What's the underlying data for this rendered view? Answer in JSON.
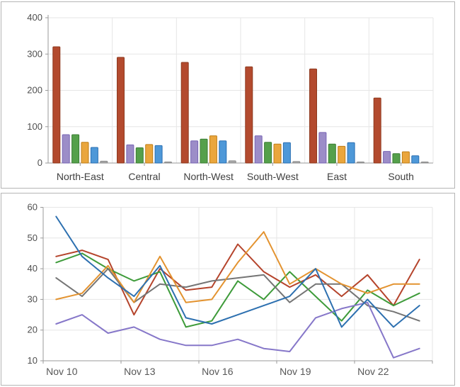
{
  "colors": {
    "background": "#ffffff",
    "panel_border": "#b5b5b5",
    "axis_line": "#9a9a9a",
    "grid_line": "#e6e6e6",
    "tick_text": "#4f4f4f",
    "category_text": "#3f3f3f",
    "date_text": "#575757"
  },
  "chart_data": [
    {
      "type": "bar",
      "title": "",
      "legend": "none",
      "grid": true,
      "categories": [
        "North-East",
        "Central",
        "North-West",
        "South-West",
        "East",
        "South"
      ],
      "ylim": [
        0,
        400
      ],
      "yticks": [
        0,
        100,
        200,
        300,
        400
      ],
      "series": [
        {
          "name": "red-series",
          "fill": "#b34a2e",
          "stroke": "#8e3a1f",
          "values": [
            320,
            291,
            277,
            265,
            259,
            179
          ]
        },
        {
          "name": "purple-series",
          "fill": "#9c8dc8",
          "stroke": "#7765b4",
          "values": [
            78,
            50,
            61,
            75,
            84,
            32
          ]
        },
        {
          "name": "green-series",
          "fill": "#55a04b",
          "stroke": "#3a7d33",
          "values": [
            78,
            42,
            66,
            57,
            52,
            26
          ]
        },
        {
          "name": "orange-series",
          "fill": "#eaa63d",
          "stroke": "#bf7e17",
          "values": [
            57,
            51,
            75,
            52,
            46,
            31
          ]
        },
        {
          "name": "blue-series",
          "fill": "#4e98d8",
          "stroke": "#2a6fb2",
          "values": [
            43,
            48,
            61,
            56,
            56,
            20
          ]
        },
        {
          "name": "gray-series",
          "fill": "#a9a9a9",
          "stroke": "#8a8a8a",
          "values": [
            5,
            3,
            6,
            4,
            3,
            3
          ]
        }
      ]
    },
    {
      "type": "line",
      "title": "",
      "legend": "none",
      "grid": true,
      "num_points": 15,
      "points_per_tick": 3,
      "x_tick_labels": [
        "Nov 10",
        "Nov 13",
        "Nov 16",
        "Nov 19",
        "Nov 22"
      ],
      "ylim": [
        10,
        60
      ],
      "yticks": [
        10,
        20,
        30,
        40,
        50,
        60
      ],
      "series": [
        {
          "name": "red-series",
          "color": "#b5442c",
          "values": [
            44,
            46,
            43,
            25,
            40,
            33,
            34,
            48,
            39,
            34,
            38,
            31,
            38,
            28,
            43
          ]
        },
        {
          "name": "green-series",
          "color": "#3e9b3a",
          "values": [
            42,
            45,
            40,
            36,
            39,
            21,
            23,
            36,
            30,
            39,
            31,
            23,
            33,
            28,
            32
          ]
        },
        {
          "name": "gray-series",
          "color": "#757575",
          "values": [
            37,
            31,
            40,
            29,
            35,
            34,
            36,
            37,
            38,
            29,
            35,
            35,
            28,
            26,
            23
          ]
        },
        {
          "name": "orange-series",
          "color": "#e39330",
          "values": [
            30,
            32,
            41,
            29,
            44,
            29,
            30,
            42,
            52,
            35,
            40,
            35,
            32,
            35,
            35
          ]
        },
        {
          "name": "purple-series",
          "color": "#8677c9",
          "values": [
            22,
            25,
            19,
            21,
            17,
            15,
            15,
            17,
            14,
            13,
            24,
            27,
            29,
            11,
            14
          ]
        },
        {
          "name": "blue-series",
          "color": "#2d70b0",
          "values": [
            57,
            44,
            37,
            31,
            41,
            24,
            22,
            25,
            28,
            31,
            40,
            21,
            30,
            21,
            28
          ]
        }
      ]
    }
  ]
}
